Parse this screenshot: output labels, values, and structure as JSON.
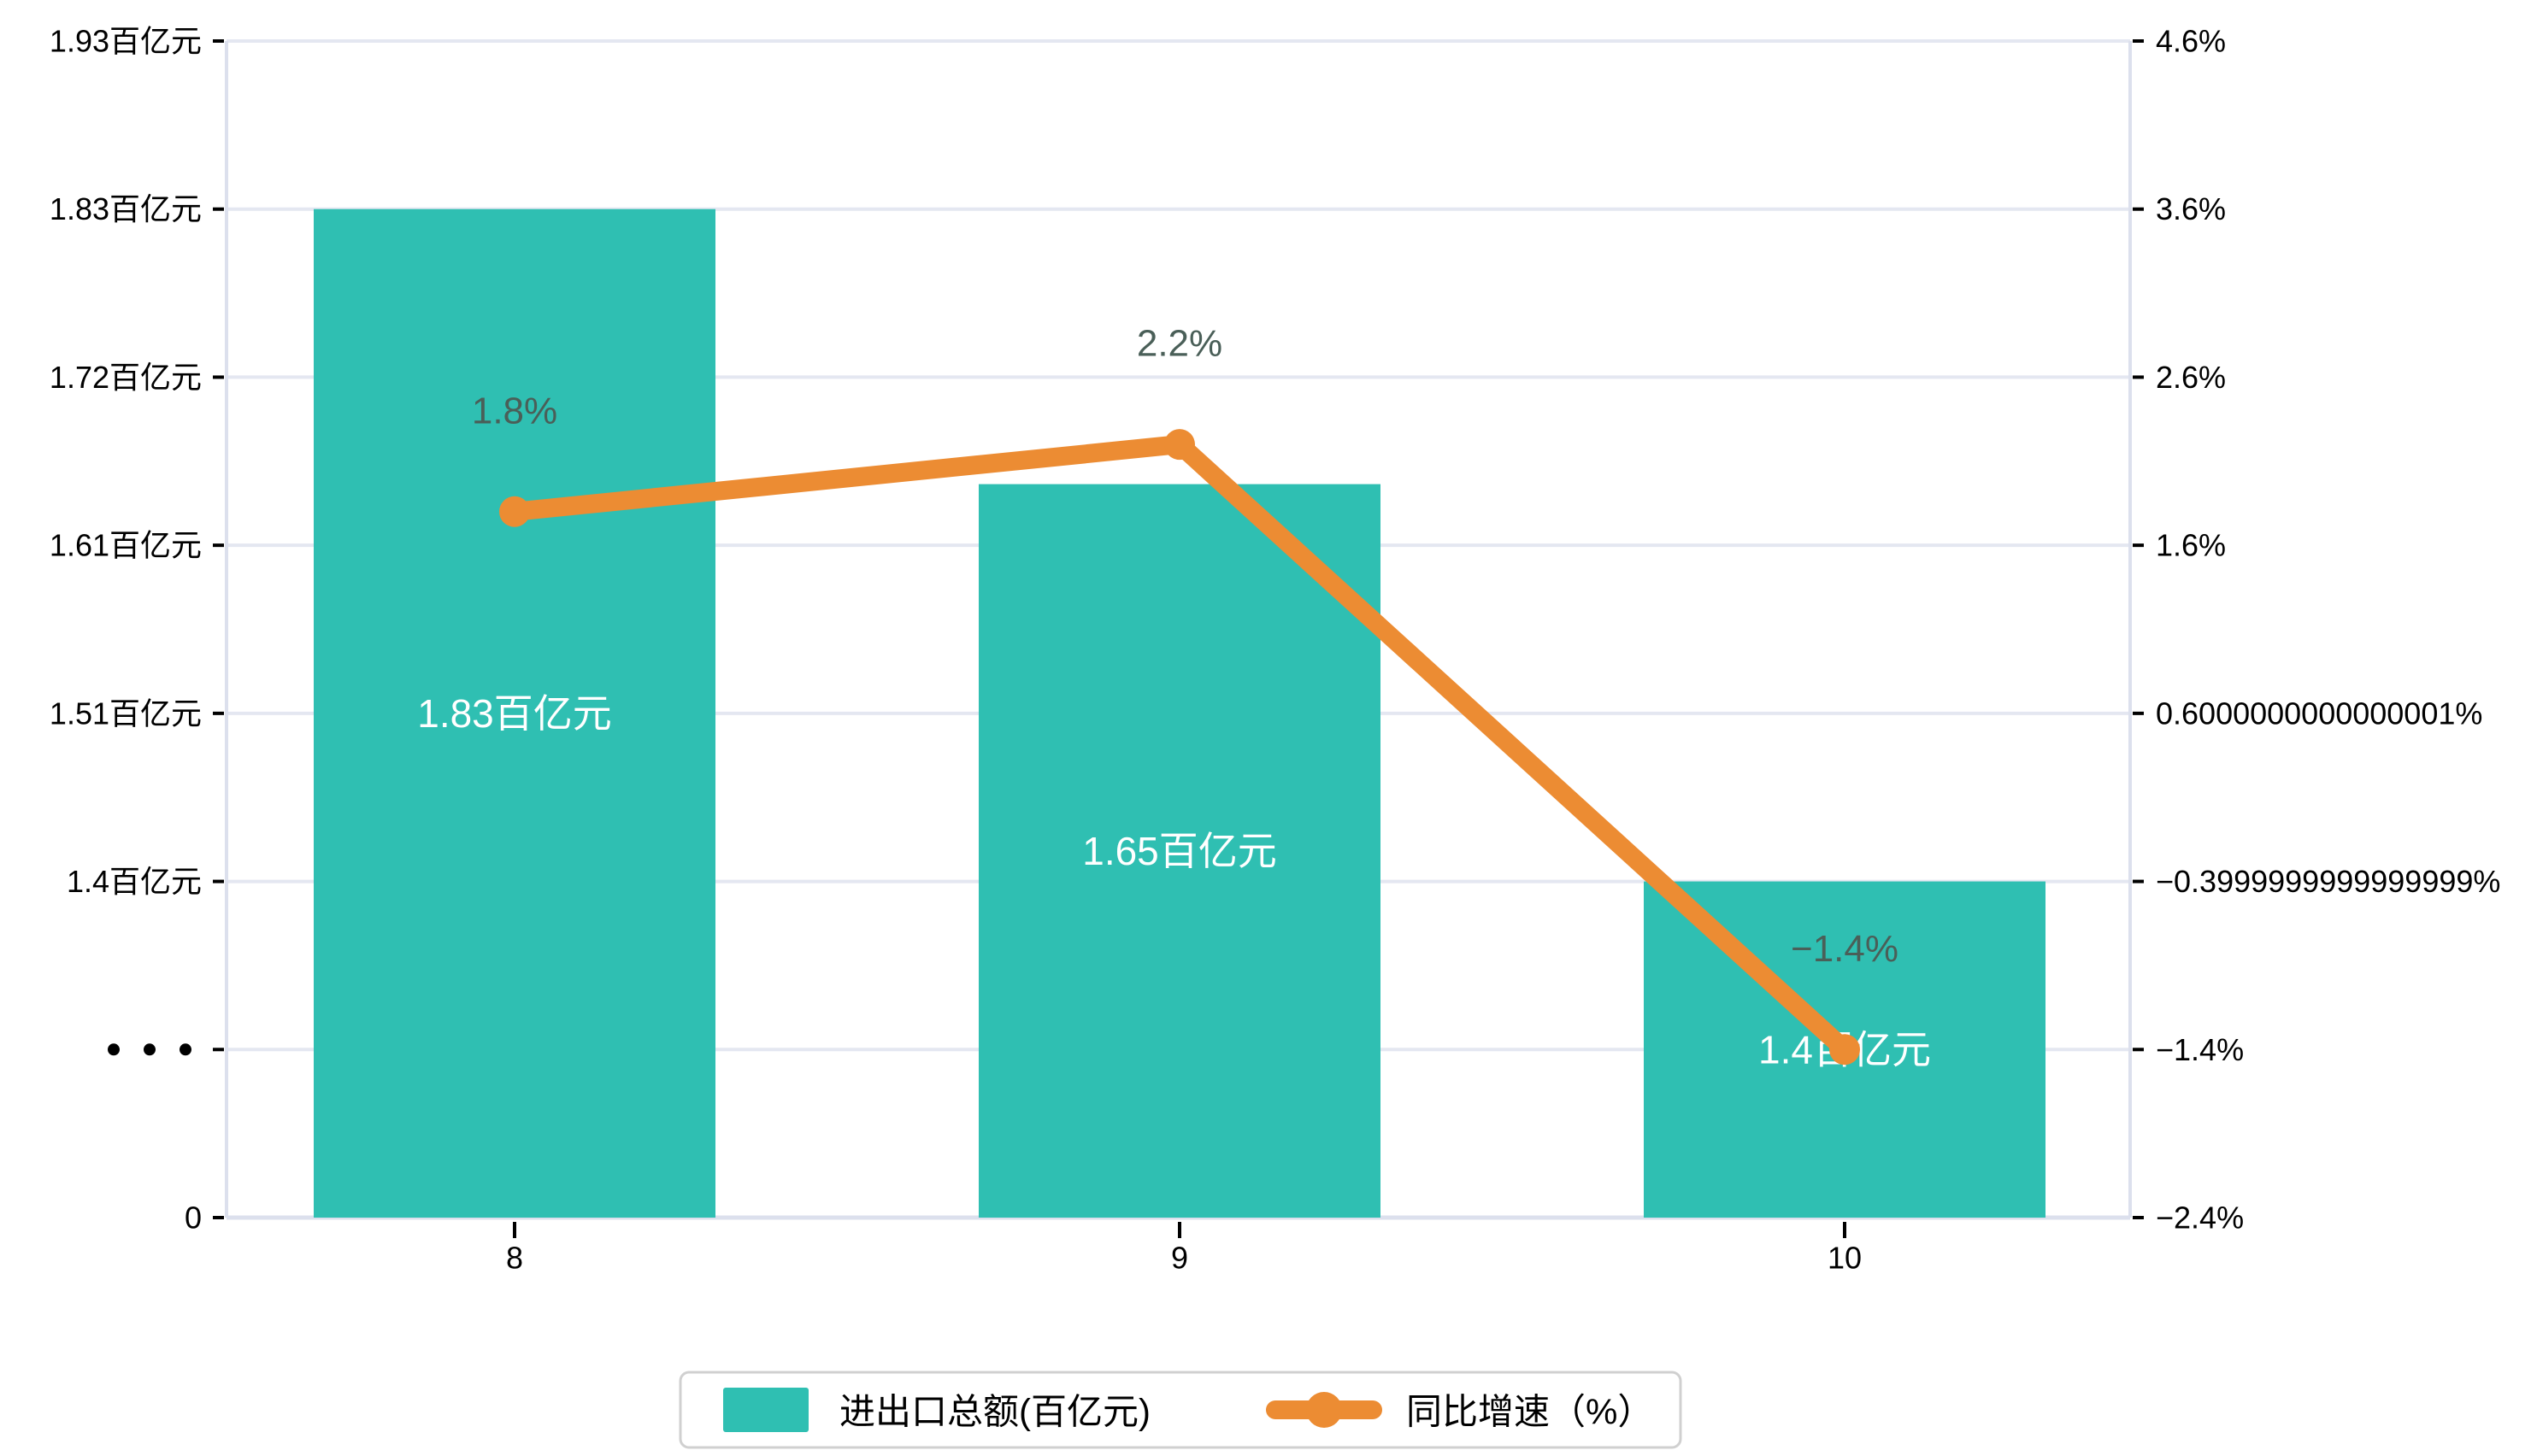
{
  "chart_data": {
    "type": "combo",
    "title": "",
    "categories": [
      "8",
      "9",
      "10"
    ],
    "series": [
      {
        "name": "进出口总额(百亿元)",
        "type": "bar",
        "axis": "left",
        "values": [
          1.83,
          1.65,
          1.4
        ],
        "unit": "百亿元",
        "data_labels": [
          "1.83百亿元",
          "1.65百亿元",
          "1.4百亿元"
        ],
        "label_position": "inside-center",
        "color": "#2FBFB2"
      },
      {
        "name": "同比增速（%）",
        "type": "line",
        "axis": "right",
        "values": [
          1.8,
          2.2,
          -1.4
        ],
        "unit": "%",
        "data_labels": [
          "1.8%",
          "2.2%",
          "−1.4%"
        ],
        "label_position": "above-point",
        "color": "#EC8C33"
      }
    ],
    "left_axis": {
      "tick_labels": [
        "1.93百亿元",
        "1.83百亿元",
        "1.72百亿元",
        "1.61百亿元",
        "1.51百亿元",
        "1.4百亿元",
        "⋯",
        "0"
      ],
      "has_axis_break": true
    },
    "right_axis": {
      "tick_labels": [
        "4.6%",
        "3.6%",
        "2.6%",
        "1.6%",
        "0.6000000000000001%",
        "−0.3999999999999999%",
        "−1.4%",
        "−2.4%"
      ],
      "range": [
        -2.4,
        4.6
      ]
    },
    "xlabel": "",
    "ylabel": "",
    "grid": "horizontal",
    "legend": {
      "position": "bottom",
      "items": [
        {
          "label": "进出口总额(百亿元)",
          "marker": "rect"
        },
        {
          "label": "同比增速（%）",
          "marker": "line-dot"
        }
      ]
    },
    "background": "#FFFFFF"
  },
  "colors": {
    "bar_teal": "#2FBFB2",
    "line_orange": "#EC8C33",
    "grid_line": "#E4E7F1",
    "axis_line": "#DCE0ED",
    "tick_mark": "#000000",
    "axis_text": "#000000",
    "bar_label": "#FFFFFF",
    "line_label": "#4A5F58",
    "legend_border": "#D0D0D0",
    "background": "#FFFFFF"
  }
}
